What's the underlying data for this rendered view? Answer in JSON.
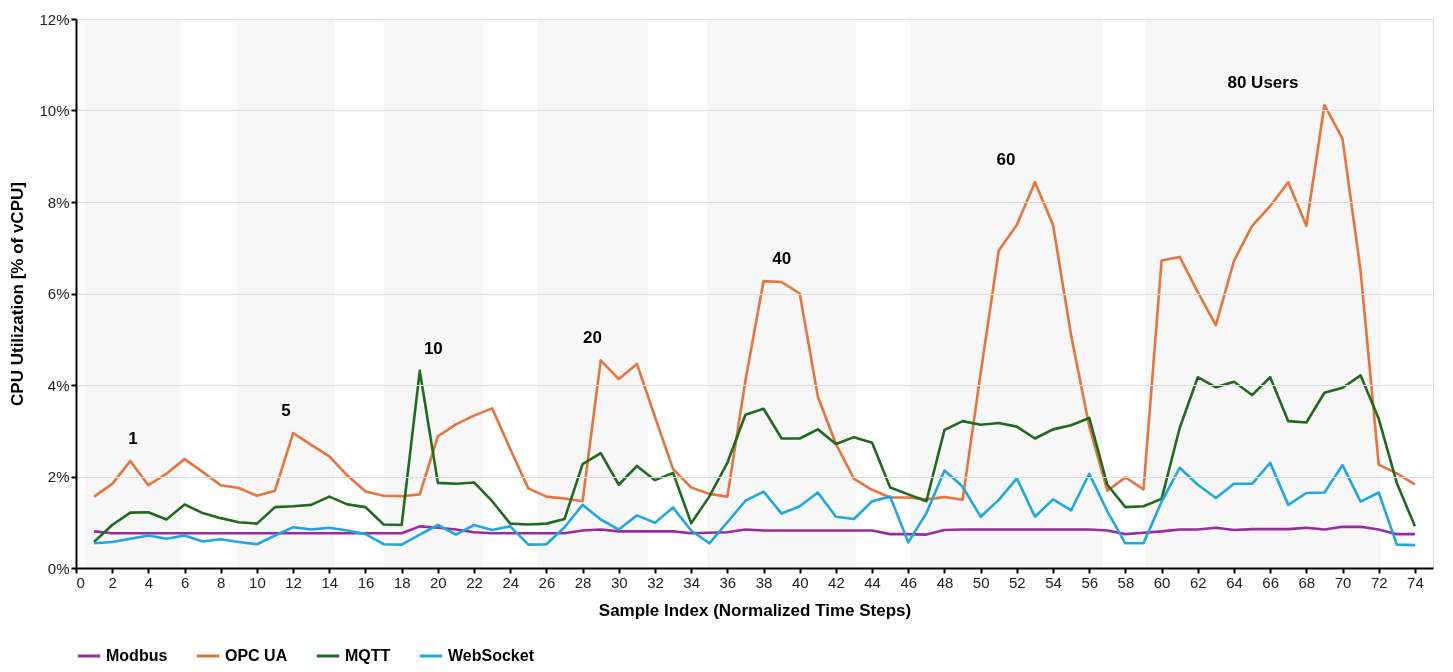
{
  "chart_data": {
    "type": "line",
    "xlabel": "Sample Index (Normalized Time Steps)",
    "ylabel": "CPU Utilization [% of vCPU]",
    "x": [
      1,
      2,
      3,
      4,
      5,
      6,
      7,
      8,
      9,
      10,
      11,
      12,
      13,
      14,
      15,
      16,
      17,
      18,
      19,
      20,
      21,
      22,
      23,
      24,
      25,
      26,
      27,
      28,
      29,
      30,
      31,
      32,
      33,
      34,
      35,
      36,
      37,
      38,
      39,
      40,
      41,
      42,
      43,
      44,
      45,
      46,
      47,
      48,
      49,
      50,
      51,
      52,
      53,
      54,
      55,
      56,
      57,
      58,
      59,
      60,
      61,
      62,
      63,
      64,
      65,
      66,
      67,
      68,
      69,
      70,
      71,
      72,
      73,
      74
    ],
    "series": [
      {
        "name": "Modbus",
        "color": "#9b2a9f",
        "values": [
          0.8,
          0.76,
          0.76,
          0.76,
          0.76,
          0.76,
          0.76,
          0.76,
          0.76,
          0.76,
          0.76,
          0.76,
          0.76,
          0.76,
          0.76,
          0.76,
          0.76,
          0.76,
          0.91,
          0.88,
          0.84,
          0.78,
          0.76,
          0.76,
          0.76,
          0.76,
          0.76,
          0.82,
          0.84,
          0.8,
          0.8,
          0.8,
          0.8,
          0.76,
          0.77,
          0.78,
          0.84,
          0.82,
          0.82,
          0.82,
          0.82,
          0.82,
          0.82,
          0.82,
          0.74,
          0.74,
          0.73,
          0.83,
          0.84,
          0.84,
          0.84,
          0.84,
          0.84,
          0.84,
          0.84,
          0.84,
          0.82,
          0.74,
          0.77,
          0.8,
          0.84,
          0.84,
          0.88,
          0.83,
          0.85,
          0.85,
          0.85,
          0.88,
          0.84,
          0.9,
          0.9,
          0.84,
          0.74,
          0.74
        ]
      },
      {
        "name": "OPC UA",
        "color": "#e8743b",
        "values": [
          1.56,
          1.84,
          2.34,
          1.81,
          2.06,
          2.38,
          2.1,
          1.81,
          1.75,
          1.58,
          1.69,
          2.95,
          2.69,
          2.44,
          2.02,
          1.67,
          1.58,
          1.57,
          1.61,
          2.88,
          3.14,
          3.33,
          3.49,
          2.6,
          1.74,
          1.56,
          1.52,
          1.46,
          4.54,
          4.13,
          4.46,
          3.3,
          2.16,
          1.76,
          1.62,
          1.56,
          4.1,
          6.27,
          6.25,
          6.0,
          3.75,
          2.71,
          1.95,
          1.71,
          1.54,
          1.54,
          1.5,
          1.55,
          1.49,
          4.26,
          6.94,
          7.5,
          8.43,
          7.5,
          5.08,
          3.1,
          1.69,
          1.98,
          1.72,
          6.72,
          6.8,
          6.03,
          5.31,
          6.71,
          7.48,
          7.91,
          8.43,
          7.48,
          10.12,
          9.38,
          6.49,
          2.26,
          2.07,
          1.83
        ]
      },
      {
        "name": "MQTT",
        "color": "#1e6b1e",
        "values": [
          0.57,
          0.94,
          1.21,
          1.22,
          1.06,
          1.39,
          1.2,
          1.09,
          1.0,
          0.97,
          1.33,
          1.35,
          1.38,
          1.56,
          1.39,
          1.33,
          0.95,
          0.94,
          4.31,
          1.86,
          1.84,
          1.87,
          1.46,
          0.97,
          0.95,
          0.97,
          1.07,
          2.27,
          2.51,
          1.82,
          2.23,
          1.92,
          2.08,
          0.98,
          1.56,
          2.3,
          3.35,
          3.48,
          2.83,
          2.83,
          3.03,
          2.71,
          2.86,
          2.74,
          1.76,
          1.61,
          1.46,
          3.02,
          3.21,
          3.13,
          3.17,
          3.09,
          2.83,
          3.03,
          3.12,
          3.28,
          1.82,
          1.33,
          1.35,
          1.51,
          3.06,
          4.17,
          3.95,
          4.07,
          3.78,
          4.17,
          3.21,
          3.18,
          3.83,
          3.94,
          4.21,
          3.26,
          1.86,
          0.91
        ]
      },
      {
        "name": "WebSocket",
        "color": "#1ea7e1",
        "values": [
          0.54,
          0.57,
          0.64,
          0.71,
          0.64,
          0.71,
          0.58,
          0.63,
          0.57,
          0.52,
          0.71,
          0.89,
          0.84,
          0.88,
          0.82,
          0.74,
          0.52,
          0.51,
          0.73,
          0.94,
          0.73,
          0.94,
          0.83,
          0.91,
          0.51,
          0.52,
          0.89,
          1.38,
          1.06,
          0.84,
          1.15,
          0.99,
          1.32,
          0.82,
          0.54,
          1.0,
          1.47,
          1.67,
          1.19,
          1.35,
          1.65,
          1.12,
          1.07,
          1.46,
          1.56,
          0.56,
          1.2,
          2.13,
          1.78,
          1.12,
          1.49,
          1.96,
          1.12,
          1.5,
          1.26,
          2.06,
          1.24,
          0.54,
          0.54,
          1.45,
          2.19,
          1.82,
          1.53,
          1.84,
          1.84,
          2.3,
          1.38,
          1.64,
          1.65,
          2.25,
          1.45,
          1.65,
          0.51,
          0.5
        ]
      }
    ],
    "xlim": [
      0,
      75
    ],
    "xticks": [
      0,
      2,
      4,
      6,
      8,
      10,
      12,
      14,
      16,
      18,
      20,
      22,
      24,
      26,
      28,
      30,
      32,
      34,
      36,
      38,
      40,
      42,
      44,
      46,
      48,
      50,
      52,
      54,
      56,
      58,
      60,
      62,
      64,
      66,
      68,
      70,
      72,
      74
    ],
    "ylim": [
      0,
      12
    ],
    "yticks": [
      {
        "value": 0,
        "label": "0%"
      },
      {
        "value": 2,
        "label": "2%"
      },
      {
        "value": 4,
        "label": "4%"
      },
      {
        "value": 6,
        "label": "6%"
      },
      {
        "value": 8,
        "label": "8%"
      },
      {
        "value": 10,
        "label": "10%"
      },
      {
        "value": 12,
        "label": "12%"
      }
    ],
    "bands": [
      {
        "axis": "x",
        "from": 0.5,
        "to": 5.8,
        "color": "#f7f7f7",
        "label": "1"
      },
      {
        "axis": "x",
        "from": 8.9,
        "to": 14.3,
        "color": "#f7f7f7",
        "label": "5"
      },
      {
        "axis": "x",
        "from": 17.0,
        "to": 22.5,
        "color": "#f7f7f7",
        "label": "10"
      },
      {
        "axis": "x",
        "from": 25.5,
        "to": 31.6,
        "color": "#f7f7f7",
        "label": "20"
      },
      {
        "axis": "x",
        "from": 34.9,
        "to": 43.1,
        "color": "#f7f7f7",
        "label": "40"
      },
      {
        "axis": "x",
        "from": 46.1,
        "to": 56.7,
        "color": "#f7f7f7",
        "label": "60"
      },
      {
        "axis": "x",
        "from": 59.1,
        "to": 72.1,
        "color": "#f7f7f7",
        "label": "80 Users"
      }
    ],
    "grid": "y",
    "legend": "bottom",
    "marker": "none",
    "line_style": "solid"
  }
}
